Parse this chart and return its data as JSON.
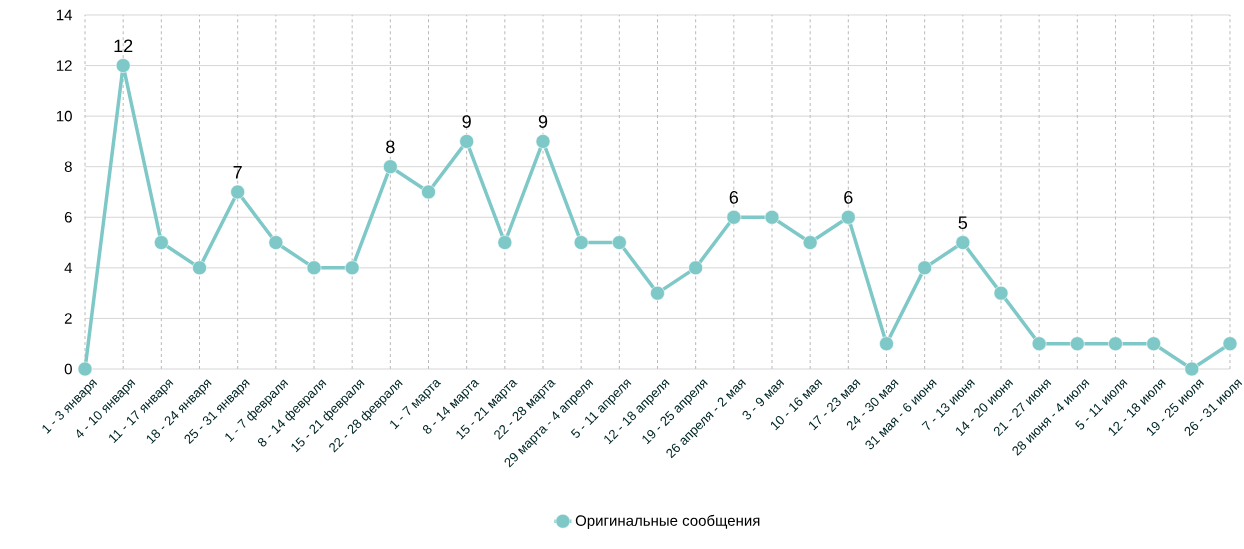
{
  "chart_data": {
    "type": "line",
    "categories": [
      "1 - 3 января",
      "4 - 10 января",
      "11 - 17 января",
      "18 - 24 января",
      "25 - 31 января",
      "1 - 7 февраля",
      "8 - 14 февраля",
      "15 - 21 февраля",
      "22 - 28 февраля",
      "1 - 7 марта",
      "8 - 14 марта",
      "15 - 21 марта",
      "22 - 28 марта",
      "29 марта - 4 апреля",
      "5 - 11 апреля",
      "12 - 18 апреля",
      "19 - 25 апреля",
      "26 апреля - 2 мая",
      "3 - 9 мая",
      "10 - 16 мая",
      "17 - 23 мая",
      "24 - 30 мая",
      "31 мая - 6 июня",
      "7 - 13 июня",
      "14 - 20 июня",
      "21 - 27 июня",
      "28 июня - 4 июля",
      "5 - 11 июля",
      "12 - 18 июля",
      "19 - 25 июля",
      "26 - 31 июля"
    ],
    "series": [
      {
        "name": "Оригинальные сообщения",
        "color": "#7fc8c8",
        "values": [
          0,
          12,
          5,
          4,
          7,
          5,
          4,
          4,
          8,
          7,
          9,
          5,
          9,
          5,
          5,
          3,
          4,
          6,
          6,
          5,
          6,
          1,
          4,
          5,
          3,
          1,
          1,
          1,
          1,
          0,
          1
        ],
        "value_labels": [
          null,
          "12",
          null,
          null,
          "7",
          null,
          null,
          null,
          "8",
          null,
          "9",
          null,
          "9",
          null,
          null,
          null,
          null,
          "6",
          null,
          null,
          "6",
          null,
          null,
          "5",
          null,
          null,
          null,
          null,
          null,
          null,
          null
        ]
      }
    ],
    "ylim": [
      0,
      14
    ],
    "yticks": [
      0,
      2,
      4,
      6,
      8,
      10,
      12,
      14
    ],
    "grid": true,
    "legend": "bottom",
    "marker": "circle",
    "line_style": "solid"
  }
}
